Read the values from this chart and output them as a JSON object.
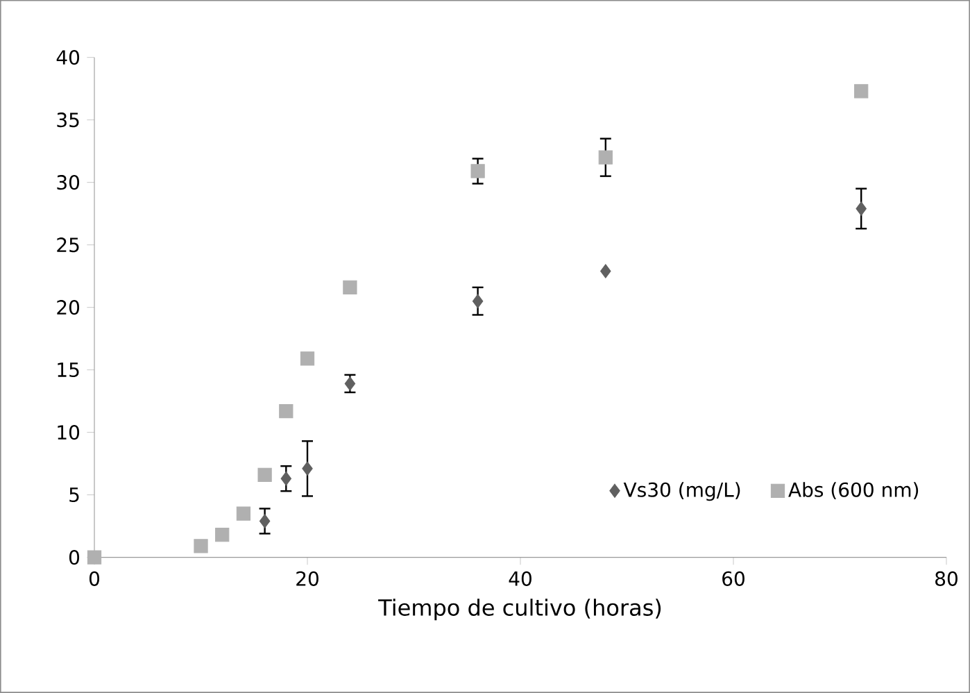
{
  "chart_data": {
    "type": "scatter",
    "xlabel": "Tiempo de cultivo (horas)",
    "xlim": [
      0,
      80
    ],
    "xticks": [
      0,
      20,
      40,
      60,
      80
    ],
    "ylim": [
      0,
      40
    ],
    "yticks": [
      0,
      5,
      10,
      15,
      20,
      25,
      30,
      35,
      40
    ],
    "legend": "bottom right",
    "grid": false,
    "series": [
      {
        "name": "Vs30 (mg/L)",
        "color": "#606060",
        "marker": "diamond",
        "x": [
          16,
          18,
          20,
          24,
          36,
          48,
          72
        ],
        "values": [
          2.9,
          6.3,
          7.1,
          13.9,
          20.5,
          22.9,
          27.9
        ],
        "errors": [
          1.0,
          1.0,
          2.2,
          0.7,
          1.1,
          null,
          1.6
        ]
      },
      {
        "name": "Abs (600 nm)",
        "color": "#b0b0b0",
        "marker": "square",
        "x": [
          0,
          10,
          12,
          14,
          16,
          18,
          20,
          24,
          36,
          48,
          72
        ],
        "values": [
          0,
          0.9,
          1.8,
          3.5,
          6.6,
          11.7,
          15.9,
          21.6,
          30.9,
          32.0,
          37.3
        ],
        "errors": [
          null,
          null,
          null,
          null,
          null,
          null,
          null,
          null,
          1.0,
          1.5,
          null
        ]
      }
    ]
  }
}
